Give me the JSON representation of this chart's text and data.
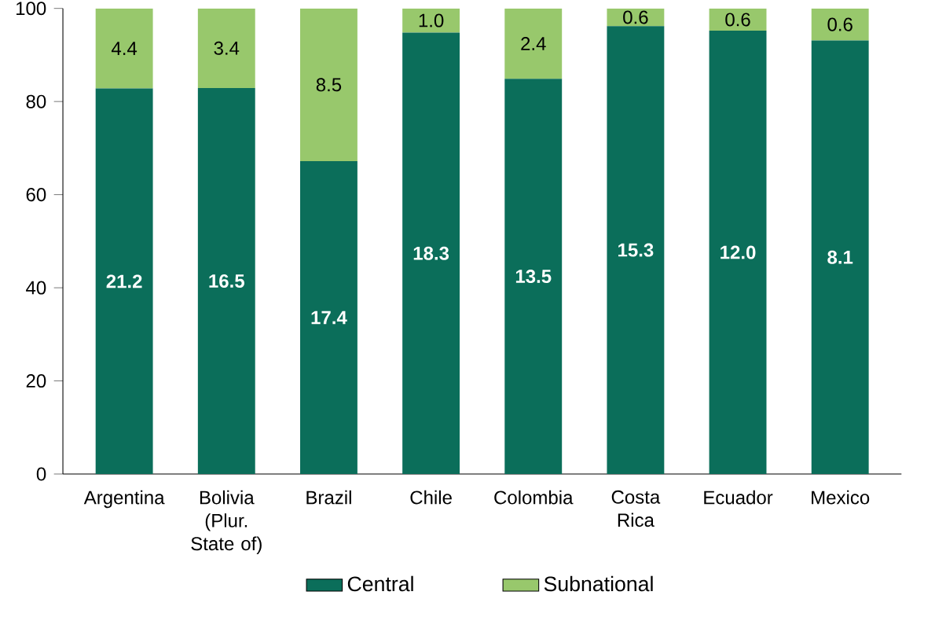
{
  "chart_data": {
    "type": "bar",
    "stacked": true,
    "categories": [
      "Argentina",
      "Bolivia (Plur. State of)",
      "Brazil",
      "Chile",
      "Colombia",
      "Costa Rica",
      "Ecuador",
      "Mexico"
    ],
    "series": [
      {
        "name": "Central",
        "color": "#0b6e5a",
        "values": [
          82.8,
          82.9,
          67.2,
          94.8,
          84.9,
          96.2,
          95.2,
          93.1
        ]
      },
      {
        "name": "Subnational",
        "color": "#98c86c",
        "values": [
          17.2,
          17.1,
          32.8,
          5.2,
          15.1,
          3.8,
          4.8,
          6.9
        ]
      }
    ],
    "annotations": [
      "21.2",
      "16.5",
      "17.4",
      "18.3",
      "13.5",
      "15.3",
      "12.0",
      "8.1",
      "4.4",
      "3.4",
      "8.5",
      "1.0",
      "2.4",
      "0.6",
      "0.6",
      "0.6"
    ],
    "ylim": [
      0,
      100
    ],
    "yticks": [
      0,
      20,
      40,
      60,
      80,
      100
    ],
    "grid": false,
    "legend": "bottom"
  }
}
